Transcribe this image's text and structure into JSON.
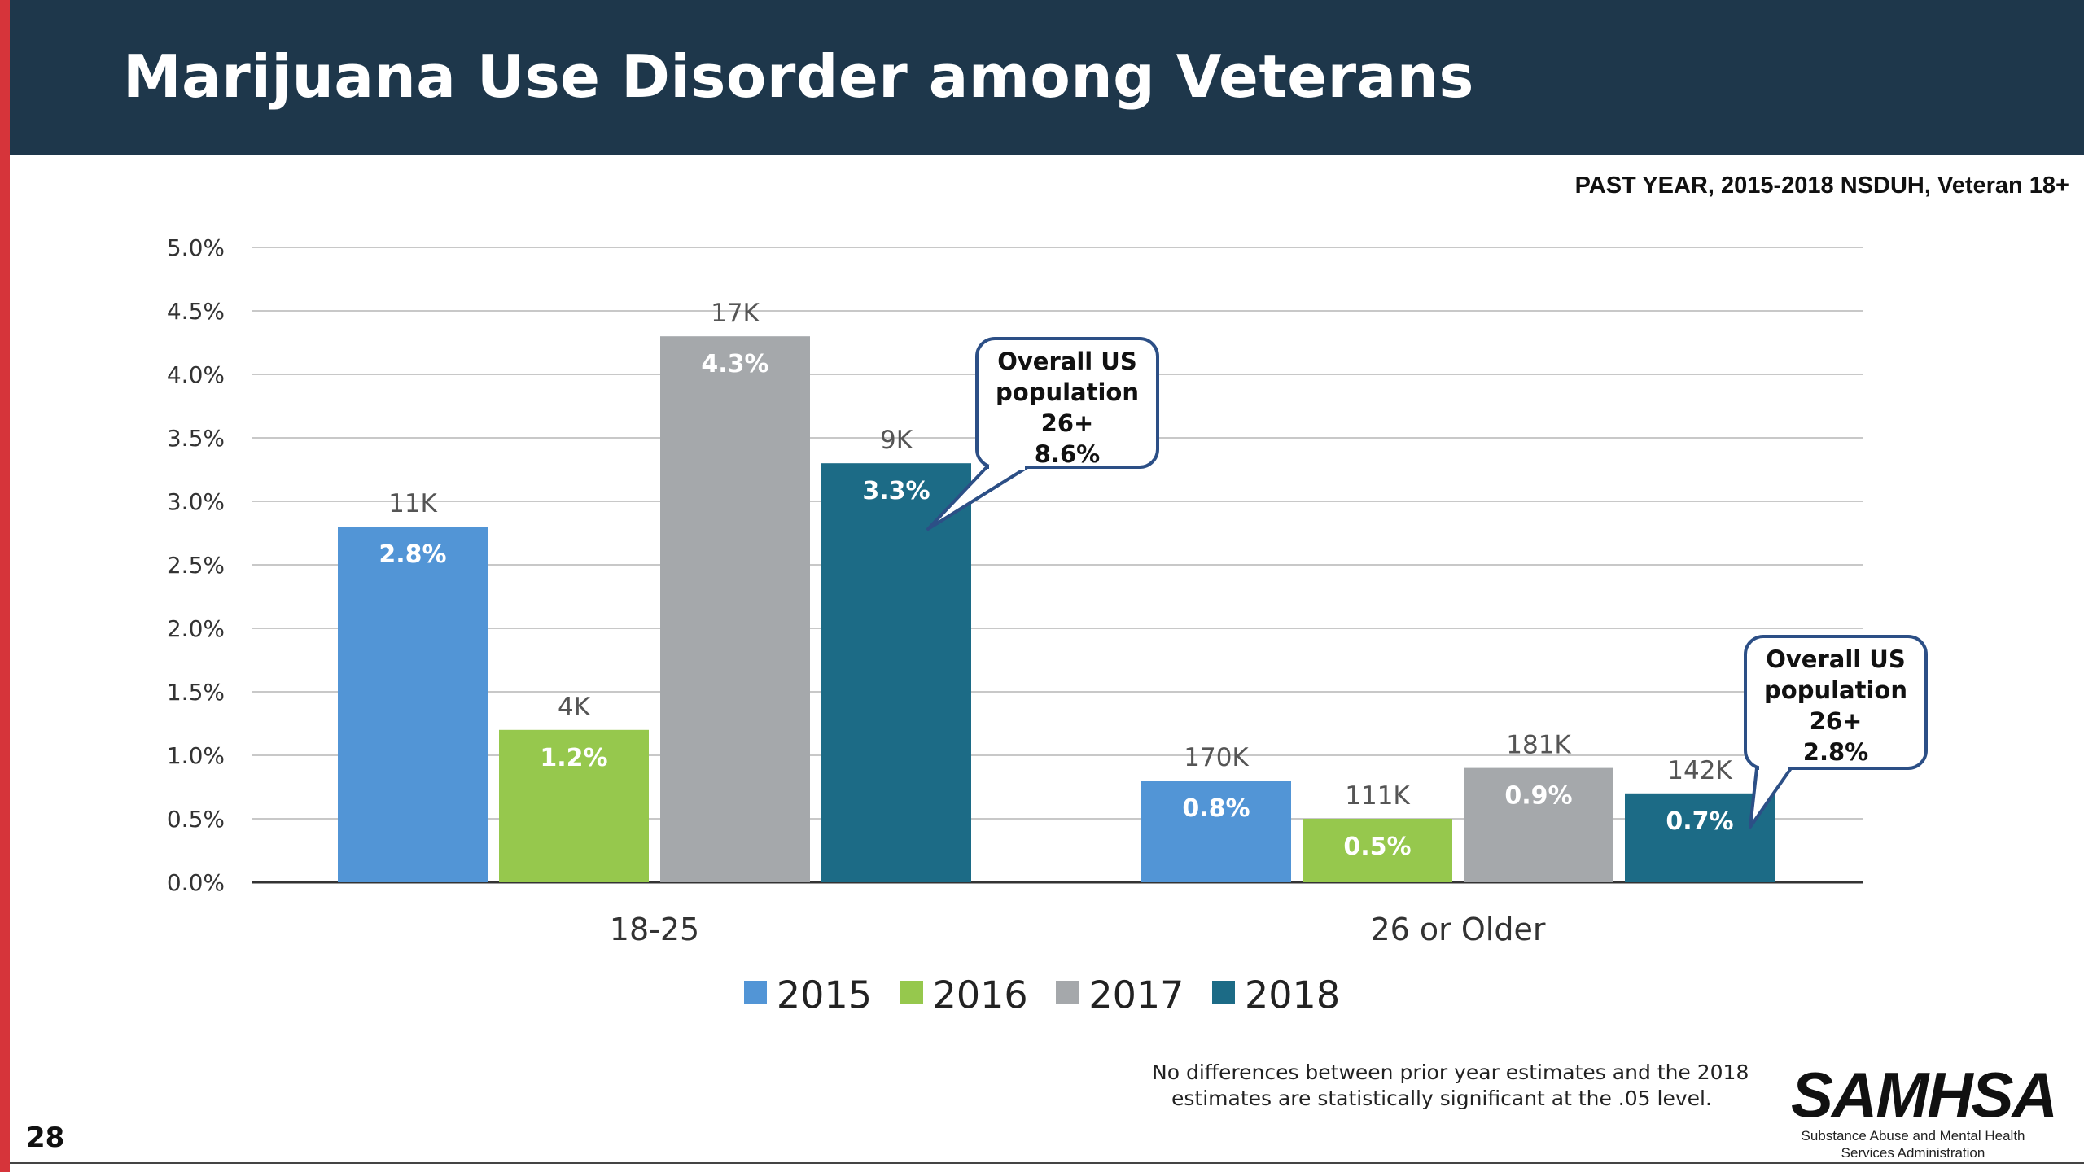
{
  "title": "Marijuana Use Disorder among Veterans",
  "subtitle": "PAST YEAR, 2015-2018 NSDUH, Veteran 18+",
  "footnote": {
    "line1": "No differences between prior year estimates and the 2018",
    "line2": "estimates are statistically significant at the .05 level."
  },
  "logo": {
    "mark": "SAMHSA",
    "line1": "Substance Abuse and Mental Health",
    "line2": "Services Administration"
  },
  "page_number": "28",
  "colors": {
    "header_bg": "#1e374b",
    "accent_red": "#d6343a",
    "s2015": "#5295d6",
    "s2016": "#96c84d",
    "s2017": "#a5a8ab",
    "s2018": "#1c6b86"
  },
  "chart_data": {
    "type": "bar",
    "categories": [
      "18-25",
      "26 or Older"
    ],
    "series": [
      {
        "name": "2015",
        "values": [
          2.8,
          0.8
        ],
        "labels": [
          "2.8%",
          "0.8%"
        ],
        "counts": [
          "11K",
          "170K"
        ]
      },
      {
        "name": "2016",
        "values": [
          1.2,
          0.5
        ],
        "labels": [
          "1.2%",
          "0.5%"
        ],
        "counts": [
          "4K",
          "111K"
        ]
      },
      {
        "name": "2017",
        "values": [
          4.3,
          0.9
        ],
        "labels": [
          "4.3%",
          "0.9%"
        ],
        "counts": [
          "17K",
          "181K"
        ]
      },
      {
        "name": "2018",
        "values": [
          3.3,
          0.7
        ],
        "labels": [
          "3.3%",
          "0.7%"
        ],
        "counts": [
          "9K",
          "142K"
        ]
      }
    ],
    "yticks": [
      "0.0%",
      "0.5%",
      "1.0%",
      "1.5%",
      "2.0%",
      "2.5%",
      "3.0%",
      "3.5%",
      "4.0%",
      "4.5%",
      "5.0%"
    ],
    "ylim": [
      0,
      5
    ],
    "grid": true,
    "legend": "bottom",
    "callouts": [
      {
        "category": 0,
        "series": 3,
        "lines": [
          "Overall US",
          "population",
          "26+",
          "8.6%"
        ]
      },
      {
        "category": 1,
        "series": 3,
        "lines": [
          "Overall US",
          "population",
          "26+",
          "2.8%"
        ]
      }
    ]
  }
}
